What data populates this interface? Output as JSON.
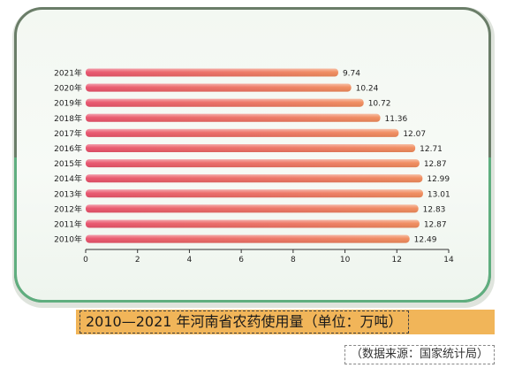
{
  "chart_data": {
    "type": "bar",
    "orientation": "horizontal",
    "categories": [
      "2021年",
      "2020年",
      "2019年",
      "2018年",
      "2017年",
      "2016年",
      "2015年",
      "2014年",
      "2013年",
      "2012年",
      "2011年",
      "2010年"
    ],
    "values": [
      9.74,
      10.24,
      10.72,
      11.36,
      12.07,
      12.71,
      12.87,
      12.99,
      13.01,
      12.83,
      12.87,
      12.49
    ],
    "value_labels": [
      "9.74",
      "10.24",
      "10.72",
      "11.36",
      "12.07",
      "12.71",
      "12.87",
      "12.99",
      "13.01",
      "12.83",
      "12.87",
      "12.49"
    ],
    "xlim": [
      0,
      14
    ],
    "xticks": [
      0,
      2,
      4,
      6,
      8,
      10,
      12,
      14
    ],
    "grid": false,
    "bar_colors": [
      "#e8506a",
      "#f08a5a"
    ]
  },
  "caption": "2010—2021 年河南省农药使用量（单位：万吨）",
  "source": "（数据来源：国家统计局）"
}
